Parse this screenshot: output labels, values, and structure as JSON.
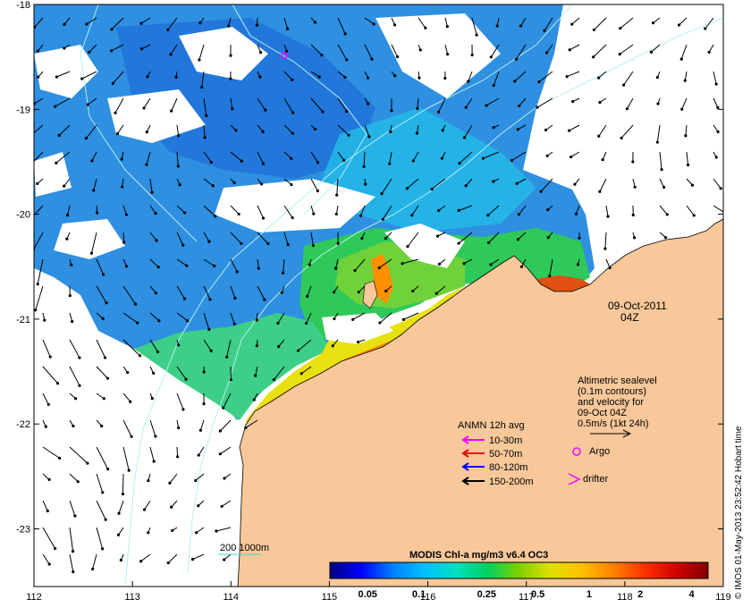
{
  "map": {
    "date_label": "09-Oct-2011",
    "time_label": "04Z",
    "credit": "© IMOS 01-May-2013 23:52:42 Hobart time",
    "colors": {
      "land": "#f8c89a",
      "ocean_blank": "#ffffff",
      "contour": "#b4f0f0",
      "arrow": "#000000"
    }
  },
  "axes": {
    "x_ticks": [
      "112",
      "113",
      "114",
      "115",
      "116",
      "117",
      "118",
      "119"
    ],
    "y_ticks": [
      "-18",
      "-19",
      "-20",
      "-21",
      "-22",
      "-23"
    ],
    "x_range": [
      112,
      119
    ],
    "y_range": [
      -23.55,
      -18
    ]
  },
  "altimetry_note": [
    "Altimetric sealevel",
    "(0.1m contours)",
    "and velocity for",
    "09-Oct 04Z",
    "0.5m/s (1kt 24h)"
  ],
  "legend": {
    "title": "ANMN 12h avg",
    "items": [
      {
        "label": "10-30m",
        "color": "#ff00ff"
      },
      {
        "label": "50-70m",
        "color": "#ff0000"
      },
      {
        "label": "80-120m",
        "color": "#0000ff"
      },
      {
        "label": "150-200m",
        "color": "#000000"
      }
    ],
    "argo_label": "Argo",
    "drifter_label": "drifter"
  },
  "scale_bar": {
    "label": "200  1000m"
  },
  "colorbar": {
    "title": "MODIS Chl-a mg/m3 v6.4 OC3",
    "labels": [
      "0.05",
      "0.1",
      "0.25",
      "0.5",
      "1",
      "2",
      "4"
    ],
    "label_values": [
      0.05,
      0.1,
      0.25,
      0.5,
      1,
      2,
      4
    ],
    "range": [
      0.03,
      5
    ],
    "stops": [
      "#000080",
      "#0000ff",
      "#0080ff",
      "#00c0ff",
      "#00e0c0",
      "#00d060",
      "#80d000",
      "#e0e000",
      "#ffc000",
      "#ff8000",
      "#ff3000",
      "#d00000",
      "#800000"
    ]
  }
}
